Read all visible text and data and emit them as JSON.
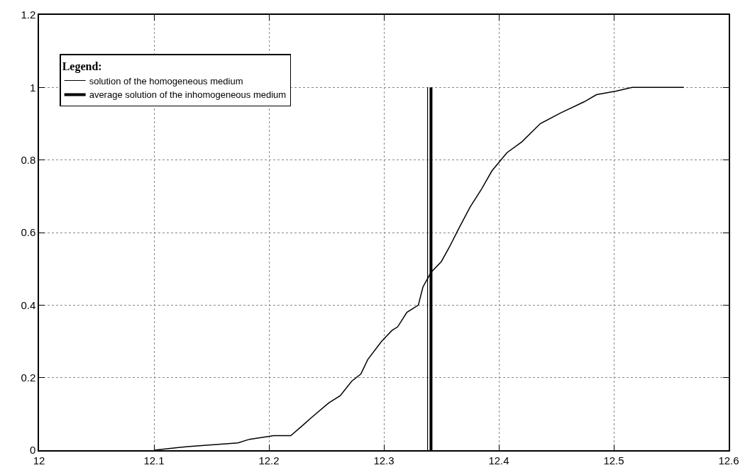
{
  "chart_data": {
    "type": "line",
    "legend_title": "Legend:",
    "xlim": [
      12,
      12.6
    ],
    "xticks": [
      12,
      12.1,
      12.2,
      12.3,
      12.4,
      12.5,
      12.6
    ],
    "ylim": [
      0,
      1.2
    ],
    "yticks": [
      0,
      0.2,
      0.4,
      0.6,
      0.8,
      1,
      1.2
    ],
    "grid": true,
    "legend": "top left",
    "line_style": "solid",
    "marker": "none",
    "series": [
      {
        "name": "solution of the homogeneous medium",
        "color": "#000000",
        "x": [
          12.338,
          12.338
        ],
        "values": [
          0,
          1
        ]
      },
      {
        "name": "average solution of the inhomogeneous medium",
        "color": "#000000",
        "x": [
          12.341,
          12.341
        ],
        "values": [
          0,
          1
        ]
      },
      {
        "color": "#000000",
        "x": [
          12.1,
          12.129,
          12.173,
          12.183,
          12.204,
          12.219,
          12.23,
          12.237,
          12.252,
          12.262,
          12.272,
          12.28,
          12.286,
          12.298,
          12.307,
          12.312,
          12.32,
          12.33,
          12.334,
          12.341,
          12.35,
          12.357,
          12.365,
          12.375,
          12.385,
          12.394,
          12.407,
          12.42,
          12.436,
          12.454,
          12.474,
          12.485,
          12.502,
          12.516,
          12.561
        ],
        "values": [
          0,
          0.01,
          0.02,
          0.03,
          0.04,
          0.04,
          0.07,
          0.09,
          0.13,
          0.15,
          0.19,
          0.21,
          0.25,
          0.3,
          0.33,
          0.34,
          0.38,
          0.4,
          0.45,
          0.49,
          0.52,
          0.56,
          0.61,
          0.67,
          0.72,
          0.77,
          0.82,
          0.85,
          0.9,
          0.93,
          0.96,
          0.98,
          0.99,
          1,
          1
        ]
      }
    ]
  }
}
